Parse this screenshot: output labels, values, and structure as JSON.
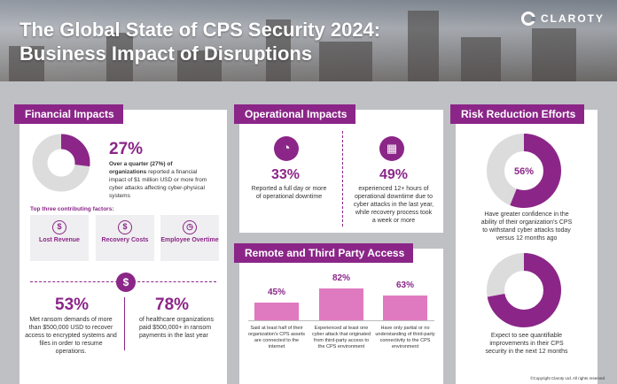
{
  "header": {
    "title_line1": "The Global State of CPS Security 2024:",
    "title_line2": "Business Impact of Disruptions",
    "logo_text": "CLAROTY"
  },
  "financial": {
    "title": "Financial Impacts",
    "stat_pct": "27%",
    "stat_bold": "Over a quarter (27%) of organizations",
    "stat_rest": "reported a financial impact of $1 million USD or more from cyber attacks affecting cyber-physical systems",
    "factors_heading": "Top three contributing factors:",
    "factors": [
      {
        "label": "Lost Revenue",
        "icon": "dollar-icon"
      },
      {
        "label": "Recovery Costs",
        "icon": "dollar-icon"
      },
      {
        "label": "Employee Overtime",
        "icon": "clock-icon"
      }
    ],
    "ransom_pct": "53%",
    "ransom_text": "Met ransom demands of more than $500,000 USD to recover access to encrypted systems and files in order to resume operations.",
    "health_pct": "78%",
    "health_text": "of healthcare organizations paid $500,000+ in ransom payments in the last year"
  },
  "operational": {
    "title": "Operational Impacts",
    "left_pct": "33%",
    "left_text": "Reported a full day or more of operational downtime",
    "right_pct": "49%",
    "right_text": "experienced 12+ hours of operational downtime due to cyber attacks in the last year, while recovery process took a week or more"
  },
  "remote": {
    "title": "Remote and Third Party Access",
    "bars": [
      {
        "value": 45,
        "label": "45%",
        "text": "Said at least half of their organization's CPS assets are connected to the internet"
      },
      {
        "value": 82,
        "label": "82%",
        "text": "Experienced at least one cyber attack that originated from third-party access to the CPS environment"
      },
      {
        "value": 63,
        "label": "63%",
        "text": "Have only partial or no understanding of third-party connectivity to the CPS environment"
      }
    ]
  },
  "risk": {
    "title": "Risk Reduction Efforts",
    "top_pct": "56%",
    "top_value": 56,
    "top_text": "Have greater confidence in the ability of their organization's CPS to withstand cyber attacks today versus 12 months ago",
    "bottom_pct": "72%",
    "bottom_value": 72,
    "bottom_text": "Expect to see quantifiable improvements in their CPS security in the next 12 months"
  },
  "footer": {
    "copyright": "©Copyright Claroty Ltd. All rights reserved"
  },
  "colors": {
    "purple": "#8b2688",
    "pink": "#e07ac0",
    "grey": "#dcdcdc"
  }
}
